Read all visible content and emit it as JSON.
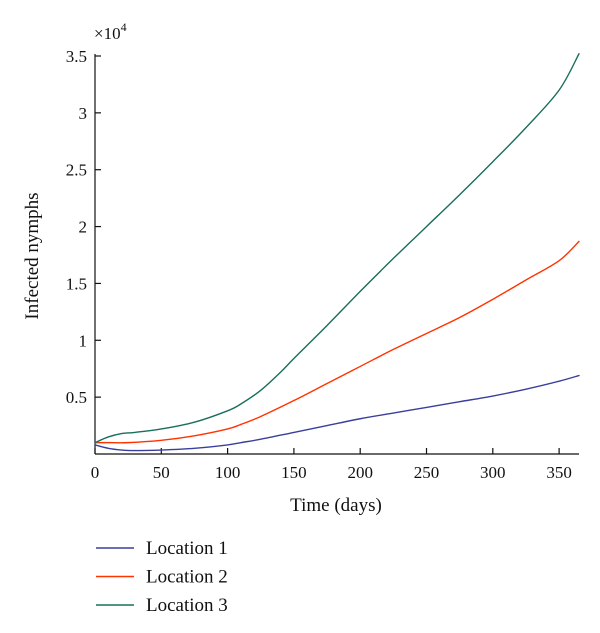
{
  "chart_data": {
    "type": "line",
    "title": "",
    "xlabel": "Time (days)",
    "ylabel": "Infected nymphs",
    "y_multiplier_base": "×10",
    "y_multiplier_exp": "4",
    "xlim": [
      0,
      365
    ],
    "ylim": [
      0,
      3.5
    ],
    "x_ticks": [
      0,
      50,
      100,
      150,
      200,
      250,
      300,
      350
    ],
    "x_tick_labels": [
      "0",
      "50",
      "100",
      "150",
      "200",
      "250",
      "300",
      "350"
    ],
    "y_ticks": [
      0.5,
      1,
      1.5,
      2,
      2.5,
      3,
      3.5
    ],
    "y_tick_labels": [
      "0.5",
      "1",
      "1.5",
      "2",
      "2.5",
      "3",
      "3.5"
    ],
    "grid": false,
    "legend_position": "below",
    "series": [
      {
        "name": "Location 1",
        "color": "#3b3f9c",
        "x": [
          0,
          10,
          20,
          30,
          50,
          75,
          100,
          110,
          125,
          150,
          175,
          200,
          225,
          250,
          275,
          300,
          325,
          350,
          365
        ],
        "y": [
          0.08,
          0.05,
          0.035,
          0.03,
          0.035,
          0.05,
          0.08,
          0.1,
          0.13,
          0.19,
          0.25,
          0.31,
          0.36,
          0.41,
          0.46,
          0.51,
          0.57,
          0.64,
          0.69
        ]
      },
      {
        "name": "Location 2",
        "color": "#ff3300",
        "x": [
          0,
          10,
          25,
          50,
          75,
          100,
          110,
          125,
          150,
          175,
          200,
          225,
          250,
          275,
          300,
          325,
          350,
          365
        ],
        "y": [
          0.1,
          0.1,
          0.1,
          0.12,
          0.16,
          0.22,
          0.26,
          0.33,
          0.47,
          0.62,
          0.77,
          0.92,
          1.06,
          1.2,
          1.36,
          1.53,
          1.7,
          1.87
        ]
      },
      {
        "name": "Location 3",
        "color": "#1a6e5c",
        "x": [
          0,
          10,
          20,
          30,
          50,
          75,
          100,
          110,
          125,
          140,
          150,
          175,
          200,
          225,
          250,
          275,
          300,
          325,
          350,
          365
        ],
        "y": [
          0.1,
          0.15,
          0.18,
          0.19,
          0.22,
          0.28,
          0.38,
          0.44,
          0.56,
          0.72,
          0.84,
          1.13,
          1.43,
          1.72,
          2.0,
          2.28,
          2.57,
          2.87,
          3.2,
          3.52
        ]
      }
    ]
  }
}
